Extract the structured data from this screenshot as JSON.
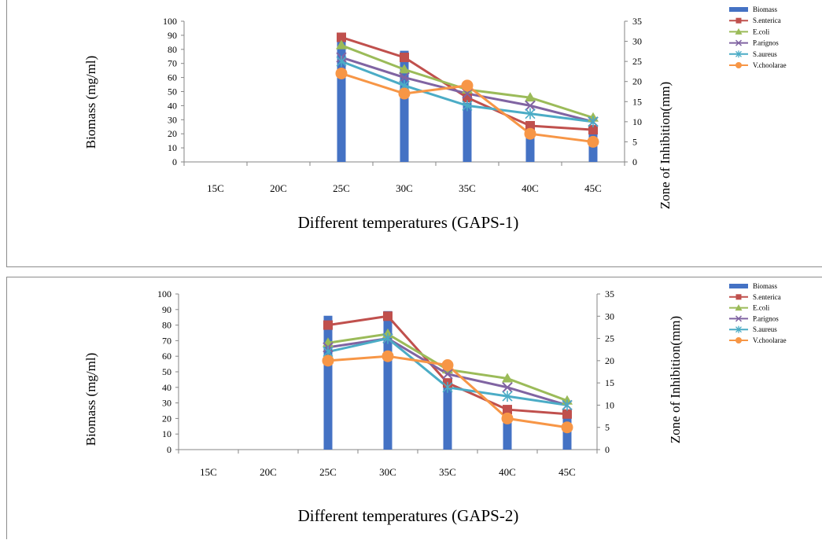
{
  "charts": [
    {
      "type": "bar+line",
      "xlabel": "Different  temperatures (GAPS-1)",
      "ylabel_left": "Biomass (mg/ml)",
      "ylabel_right": "Zone of  Inhibition(mm)",
      "categories": [
        "15C",
        "20C",
        "25C",
        "30C",
        "35C",
        "40C",
        "45C"
      ],
      "y_left_ticks": [
        "0",
        "10",
        "20",
        "30",
        "40",
        "50",
        "60",
        "70",
        "80",
        "90",
        "100"
      ],
      "y_right_ticks": [
        "0",
        "5",
        "10",
        "15",
        "20",
        "25",
        "30",
        "35"
      ],
      "ylim_left": [
        0,
        100
      ],
      "ylim_right": [
        0,
        35
      ],
      "legend_position": "top-right",
      "chart_data": {
        "bars": {
          "name": "Biomass",
          "color": "#4472c4",
          "values": [
            0,
            0,
            89,
            79,
            42,
            26,
            22
          ]
        },
        "series": [
          {
            "name": "S.enterica",
            "color": "#c0504d",
            "marker": "square",
            "values": [
              null,
              null,
              31,
              26,
              16,
              9,
              8
            ]
          },
          {
            "name": "E.coli",
            "color": "#9bbb59",
            "marker": "triangle",
            "values": [
              null,
              null,
              29,
              23,
              18,
              16,
              11
            ]
          },
          {
            "name": "P.arignos",
            "color": "#8064a2",
            "marker": "x",
            "values": [
              null,
              null,
              26,
              21,
              17,
              14,
              10
            ]
          },
          {
            "name": "S.aureus",
            "color": "#4bacc6",
            "marker": "star",
            "values": [
              null,
              null,
              25,
              19,
              14,
              12,
              10
            ]
          },
          {
            "name": "V.choolarae",
            "color": "#f79646",
            "marker": "circle",
            "values": [
              null,
              null,
              22,
              17,
              19,
              7,
              5
            ]
          }
        ]
      }
    },
    {
      "type": "bar+line",
      "xlabel": "Different  temperatures (GAPS-2)",
      "ylabel_left": "Biomass (mg/ml)",
      "ylabel_right": "Zone of  Inhibition(mm)",
      "categories": [
        "15C",
        "20C",
        "25C",
        "30C",
        "35C",
        "40C",
        "45C"
      ],
      "y_left_ticks": [
        "0",
        "10",
        "20",
        "30",
        "40",
        "50",
        "60",
        "70",
        "80",
        "90",
        "100"
      ],
      "y_right_ticks": [
        "0",
        "5",
        "10",
        "15",
        "20",
        "25",
        "30",
        "35"
      ],
      "ylim_left": [
        0,
        100
      ],
      "ylim_right": [
        0,
        35
      ],
      "legend_position": "top-right",
      "chart_data": {
        "bars": {
          "name": "Biomass",
          "color": "#4472c4",
          "values": [
            0,
            0,
            86,
            89,
            42,
            26,
            24
          ]
        },
        "series": [
          {
            "name": "S.enterica",
            "color": "#c0504d",
            "marker": "square",
            "values": [
              null,
              null,
              28,
              30,
              15,
              9,
              8
            ]
          },
          {
            "name": "E.coli",
            "color": "#9bbb59",
            "marker": "triangle",
            "values": [
              null,
              null,
              24,
              26,
              18,
              16,
              11
            ]
          },
          {
            "name": "P.arignos",
            "color": "#8064a2",
            "marker": "x",
            "values": [
              null,
              null,
              23,
              25,
              17,
              14,
              10
            ]
          },
          {
            "name": "S.aureus",
            "color": "#4bacc6",
            "marker": "star",
            "values": [
              null,
              null,
              22,
              25,
              14,
              12,
              10
            ]
          },
          {
            "name": "V.choolarae",
            "color": "#f79646",
            "marker": "circle",
            "values": [
              null,
              null,
              20,
              21,
              19,
              7,
              5
            ]
          }
        ]
      }
    }
  ]
}
